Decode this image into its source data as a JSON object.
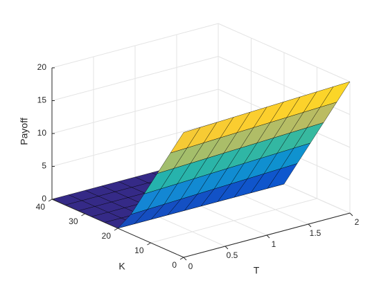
{
  "chart_data": {
    "type": "surface",
    "x_label": "T",
    "y_label": "K",
    "z_label": "Payoff",
    "x": [
      0,
      0.2,
      0.4,
      0.6,
      0.8,
      1,
      1.2,
      1.4,
      1.6,
      1.8,
      2
    ],
    "y": [
      0,
      4,
      8,
      12,
      16,
      20,
      24,
      28,
      32,
      36,
      40
    ],
    "z": [
      [
        19,
        15,
        11,
        7,
        3,
        0,
        0,
        0,
        0,
        0,
        0
      ],
      [
        19.1,
        15.1,
        11.1,
        7.1,
        3.1,
        0,
        0,
        0,
        0,
        0,
        0
      ],
      [
        19.2,
        15.2,
        11.2,
        7.2,
        3.2,
        0,
        0,
        0,
        0,
        0,
        0
      ],
      [
        19.3,
        15.3,
        11.3,
        7.3,
        3.3,
        0,
        0,
        0,
        0,
        0,
        0
      ],
      [
        19.4,
        15.4,
        11.4,
        7.4,
        3.4,
        0,
        0,
        0,
        0,
        0,
        0
      ],
      [
        19.5,
        15.5,
        11.5,
        7.5,
        3.5,
        0,
        0,
        0,
        0,
        0,
        0
      ],
      [
        19.6,
        15.6,
        11.6,
        7.6,
        3.6,
        0,
        0,
        0,
        0,
        0,
        0
      ],
      [
        19.7,
        15.7,
        11.7,
        7.7,
        3.7,
        0,
        0,
        0,
        0,
        0,
        0
      ],
      [
        19.8,
        15.8,
        11.8,
        7.8,
        3.8,
        0,
        0,
        0,
        0,
        0,
        0
      ],
      [
        19.9,
        15.9,
        11.9,
        7.9,
        3.9,
        0,
        0,
        0,
        0,
        0,
        0
      ],
      [
        20,
        16,
        12,
        8,
        4,
        0,
        0,
        0,
        0,
        0,
        0
      ]
    ],
    "xlim": [
      0,
      2
    ],
    "xticks": [
      0,
      0.5,
      1,
      1.5,
      2
    ],
    "ylim": [
      0,
      40
    ],
    "yticks": [
      0,
      10,
      20,
      30,
      40
    ],
    "zlim": [
      0,
      20
    ],
    "zticks": [
      0,
      5,
      10,
      15,
      20
    ],
    "grid": true,
    "colormap": [
      "#352a87",
      "#0363e1",
      "#1485d4",
      "#06a7c6",
      "#38b99e",
      "#92bf73",
      "#d9ba56",
      "#fcce2e",
      "#f9fb0e"
    ]
  }
}
